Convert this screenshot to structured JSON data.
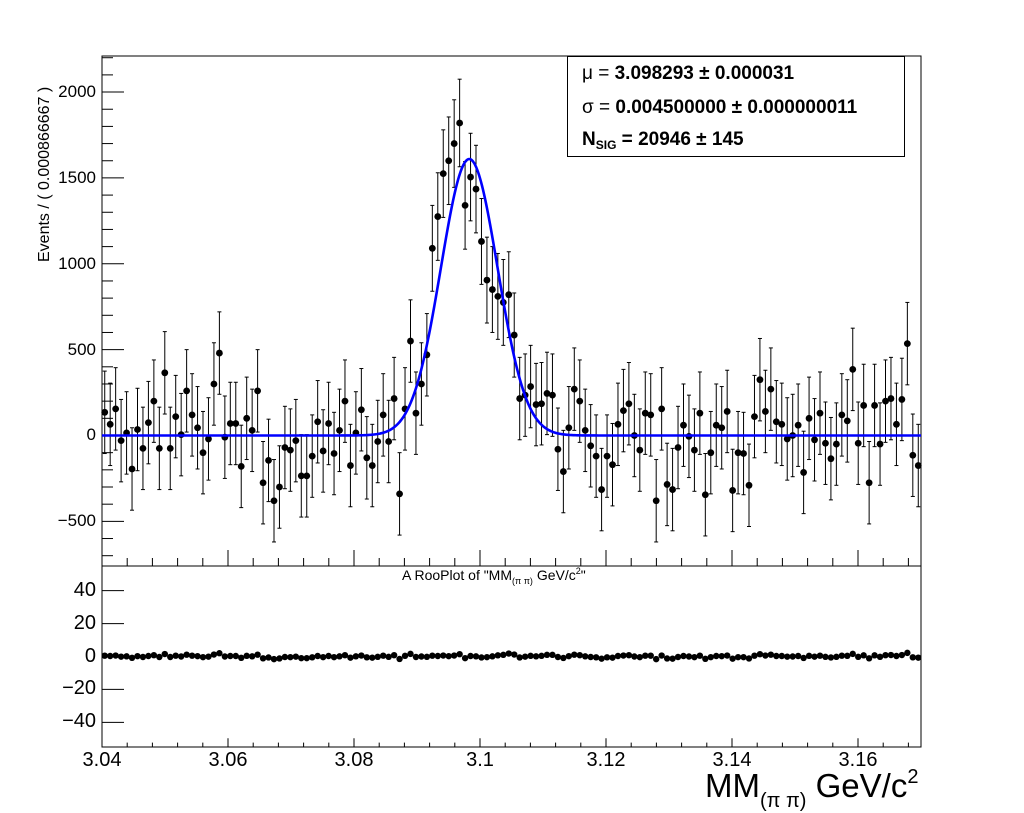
{
  "chart_data": {
    "type": "scatter",
    "title": "A RooPlot of \"MM_(π π) GeV/c^2\"",
    "xlabel": "MM_(π π) GeV/c^2",
    "ylabel": "Events / ( 0.000866667 )",
    "xlim": [
      3.04,
      3.17
    ],
    "ylim": [
      -760,
      2210
    ],
    "bin_width": 0.000866667,
    "n_bins": 150,
    "x_ticks": [
      "3.04",
      "3.06",
      "3.08",
      "3.1",
      "3.12",
      "3.14",
      "3.16"
    ],
    "y_ticks": [
      "-500",
      "0",
      "500",
      "1000",
      "1500",
      "2000"
    ],
    "series": [
      {
        "name": "data",
        "style": "points-with-error-bars",
        "color": "#000000",
        "values": [
          135,
          65,
          155,
          -30,
          15,
          -195,
          35,
          -75,
          75,
          200,
          -75,
          365,
          -75,
          110,
          5,
          260,
          120,
          45,
          -100,
          -20,
          300,
          480,
          -10,
          70,
          70,
          -180,
          100,
          30,
          260,
          -275,
          -145,
          -380,
          -300,
          -70,
          -85,
          -30,
          -235,
          -235,
          -120,
          80,
          -90,
          70,
          -105,
          30,
          200,
          -175,
          15,
          150,
          -130,
          -175,
          -35,
          120,
          -35,
          215,
          -340,
          155,
          550,
          130,
          300,
          470,
          1090,
          1275,
          1525,
          1600,
          1700,
          1820,
          1340,
          1505,
          1435,
          1130,
          905,
          850,
          810,
          775,
          820,
          585,
          215,
          235,
          285,
          180,
          185,
          245,
          235,
          -80,
          -210,
          45,
          270,
          200,
          30,
          -60,
          -120,
          -315,
          -120,
          -170,
          65,
          145,
          185,
          0,
          -85,
          130,
          120,
          -380,
          155,
          -285,
          -315,
          -70,
          60,
          -5,
          -85,
          130,
          -345,
          -100,
          60,
          45,
          140,
          -320,
          -100,
          -105,
          -290,
          110,
          325,
          140,
          270,
          80,
          65,
          -20,
          0,
          60,
          -215,
          100,
          -25,
          130,
          -45,
          -135,
          -50,
          120,
          85,
          385,
          -45,
          175,
          -275,
          175,
          -50,
          200,
          215,
          65,
          210,
          535,
          -115,
          -175
        ],
        "errors": [
          240,
          240,
          240,
          240,
          240,
          240,
          240,
          240,
          240,
          240,
          240,
          240,
          240,
          240,
          240,
          240,
          240,
          240,
          240,
          240,
          240,
          240,
          240,
          240,
          240,
          240,
          240,
          240,
          240,
          240,
          240,
          240,
          240,
          240,
          240,
          240,
          240,
          240,
          240,
          240,
          240,
          240,
          240,
          240,
          240,
          240,
          240,
          240,
          240,
          240,
          240,
          240,
          240,
          240,
          240,
          240,
          240,
          240,
          240,
          240,
          250,
          255,
          255,
          255,
          255,
          255,
          255,
          255,
          255,
          250,
          250,
          250,
          250,
          250,
          250,
          245,
          240,
          240,
          240,
          240,
          240,
          240,
          240,
          240,
          240,
          240,
          240,
          240,
          240,
          240,
          240,
          240,
          240,
          240,
          240,
          240,
          240,
          240,
          240,
          240,
          240,
          240,
          240,
          240,
          240,
          240,
          240,
          240,
          240,
          240,
          240,
          240,
          240,
          240,
          240,
          240,
          240,
          240,
          240,
          240,
          240,
          240,
          240,
          240,
          240,
          240,
          240,
          240,
          240,
          240,
          240,
          240,
          240,
          240,
          240,
          240,
          240,
          240,
          240,
          240,
          240,
          240,
          240,
          240,
          240,
          240,
          240,
          240,
          240,
          240
        ]
      },
      {
        "name": "gaussian-fit",
        "style": "line",
        "color": "#0000ff",
        "model": "gaussian",
        "mean": 3.098293,
        "sigma": 0.0045,
        "amplitude": 1610,
        "baseline": 0
      }
    ],
    "fit_results": {
      "mu": "3.098293",
      "mu_err": "0.000031",
      "sigma": "0.004500000",
      "sigma_err": "0.000000011",
      "nsig": "20946",
      "nsig_err": "145"
    },
    "residual_panel": {
      "type": "scatter",
      "ylim": [
        -55,
        55
      ],
      "y_ticks": [
        "-40",
        "-20",
        "0",
        "20",
        "40"
      ],
      "values": [
        0.5,
        0.3,
        0.6,
        -0.1,
        0.1,
        -0.8,
        0.2,
        -0.3,
        0.3,
        0.8,
        -0.3,
        1.5,
        -0.3,
        0.5,
        0.0,
        1.1,
        0.5,
        0.2,
        -0.4,
        -0.1,
        1.2,
        2.0,
        0.0,
        0.3,
        0.3,
        -0.8,
        0.4,
        0.1,
        1.1,
        -1.1,
        -0.6,
        -1.6,
        -1.2,
        -0.3,
        -0.4,
        -0.1,
        -1.0,
        -1.0,
        -0.5,
        0.3,
        -0.4,
        0.3,
        -0.4,
        0.1,
        0.8,
        -0.7,
        0.1,
        0.6,
        -0.5,
        -0.7,
        -0.2,
        0.5,
        -0.2,
        0.8,
        -1.5,
        0.4,
        1.6,
        -0.3,
        0.0,
        -0.2,
        0.5,
        0.3,
        0.6,
        0.2,
        0.6,
        1.4,
        -1.0,
        0.3,
        0.1,
        -0.6,
        -0.4,
        0.1,
        0.7,
        1.0,
        1.8,
        1.2,
        -0.6,
        -0.1,
        0.4,
        0.1,
        0.4,
        1.0,
        1.0,
        -0.3,
        -0.9,
        0.2,
        1.1,
        0.8,
        0.1,
        -0.3,
        -0.5,
        -1.3,
        -0.5,
        -0.7,
        0.3,
        0.6,
        0.8,
        0.0,
        -0.4,
        0.5,
        0.5,
        -1.6,
        0.6,
        -1.2,
        -1.3,
        -0.3,
        0.3,
        0.0,
        -0.4,
        0.5,
        -1.4,
        -0.4,
        0.3,
        0.2,
        0.6,
        -1.3,
        -0.4,
        -0.4,
        -1.2,
        0.5,
        1.4,
        0.6,
        1.1,
        0.3,
        0.3,
        -0.1,
        0.0,
        0.3,
        -0.9,
        0.4,
        -0.1,
        0.5,
        -0.2,
        -0.6,
        -0.2,
        0.5,
        0.4,
        1.6,
        -0.2,
        0.7,
        -1.1,
        0.7,
        -0.2,
        0.8,
        0.9,
        0.3,
        0.9,
        2.2,
        -0.5,
        -0.7
      ]
    },
    "grid": false,
    "legend": "none"
  },
  "labels": {
    "ylabel": "Events / ( 0.000866667 )",
    "subtitle_main": "A RooPlot of \"MM",
    "subtitle_sub": "(π π)",
    "subtitle_rest": " GeV/c",
    "subtitle_sup": "2",
    "subtitle_end": "\"",
    "xtitle_main": "MM",
    "xtitle_sub": "(π π)",
    "xtitle_rest": " GeV/c",
    "xtitle_sup": "2"
  },
  "stats_box": {
    "mu_label": "μ = ",
    "mu_value": "3.098293 ± 0.000031",
    "sigma_label": "σ = ",
    "sigma_value": "0.004500000 ± 0.000000011",
    "nsig_label": "N",
    "nsig_sub": "SIG",
    "nsig_eq": " = ",
    "nsig_value": "20946 ± 145"
  },
  "axes": {
    "main_y_ticks": [
      {
        "label": "2000",
        "value": 2000
      },
      {
        "label": "1500",
        "value": 1500
      },
      {
        "label": "1000",
        "value": 1000
      },
      {
        "label": "500",
        "value": 500
      },
      {
        "label": "0",
        "value": 0
      },
      {
        "label": "−500",
        "value": -500
      }
    ],
    "resid_y_ticks": [
      {
        "label": "40",
        "value": 40
      },
      {
        "label": "20",
        "value": 20
      },
      {
        "label": "0",
        "value": 0
      },
      {
        "label": "−20",
        "value": -20
      },
      {
        "label": "−40",
        "value": -40
      }
    ],
    "x_ticks": [
      {
        "label": "3.04",
        "value": 3.04
      },
      {
        "label": "3.06",
        "value": 3.06
      },
      {
        "label": "3.08",
        "value": 3.08
      },
      {
        "label": "3.1",
        "value": 3.1
      },
      {
        "label": "3.12",
        "value": 3.12
      },
      {
        "label": "3.14",
        "value": 3.14
      },
      {
        "label": "3.16",
        "value": 3.16
      }
    ]
  }
}
